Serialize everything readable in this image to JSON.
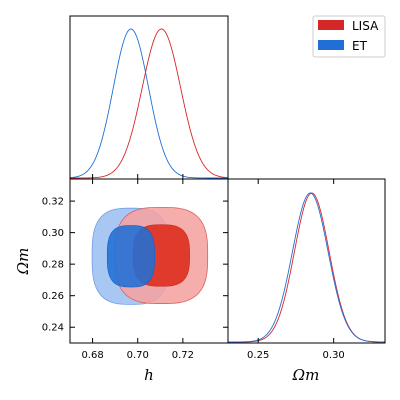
{
  "chart_data": {
    "type": "corner",
    "parameters": [
      {
        "name": "h",
        "label": "h",
        "lim": [
          0.67,
          0.74
        ],
        "ticks": [
          0.68,
          0.7,
          0.72
        ],
        "tick_labels": [
          "0.68",
          "0.70",
          "0.72"
        ]
      },
      {
        "name": "Omega_m",
        "label": "Ωm",
        "lim": [
          0.23,
          0.334
        ],
        "ticks": [
          0.25,
          0.3
        ],
        "tick_labels": [
          "0.25",
          "0.30"
        ],
        "y_ticks": [
          0.24,
          0.26,
          0.28,
          0.3,
          0.32
        ],
        "y_tick_labels": [
          "0.24",
          "0.26",
          "0.28",
          "0.30",
          "0.32"
        ]
      }
    ],
    "legend": {
      "position": "top-right",
      "entries": [
        "LISA",
        "ET"
      ]
    },
    "series": [
      {
        "name": "LISA",
        "color": "#d62728",
        "light_color": "#f4a3a0",
        "h_mean": 0.7105,
        "h_sigma": 0.0085,
        "om_mean": 0.2855,
        "om_sigma": 0.0115,
        "contour_68": {
          "h_half": 0.0125,
          "om_half": 0.0195
        },
        "contour_95": {
          "h_half": 0.0205,
          "om_half": 0.0305
        }
      },
      {
        "name": "ET",
        "color": "#1f6fd6",
        "light_color": "#a8c7f2",
        "h_mean": 0.697,
        "h_sigma": 0.0078,
        "om_mean": 0.285,
        "om_sigma": 0.0118,
        "contour_68": {
          "h_half": 0.0105,
          "om_half": 0.0195
        },
        "contour_95": {
          "h_half": 0.0172,
          "om_half": 0.0305
        }
      }
    ]
  }
}
